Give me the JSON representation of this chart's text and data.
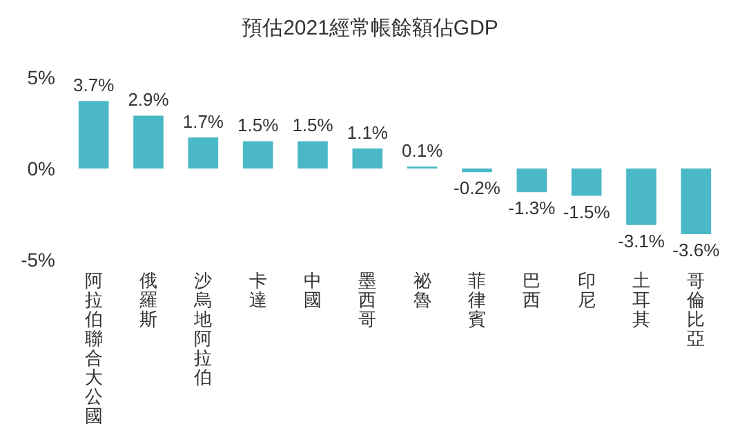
{
  "chart_data": {
    "type": "bar",
    "title": "預估2021經常帳餘額佔GDP",
    "categories": [
      "阿拉伯聯合大公國",
      "俄羅斯",
      "沙烏地阿拉伯",
      "卡達",
      "中國",
      "墨西哥",
      "祕魯",
      "菲律賓",
      "巴西",
      "印尼",
      "土耳其",
      "哥倫比亞"
    ],
    "values": [
      3.7,
      2.9,
      1.7,
      1.5,
      1.5,
      1.1,
      0.1,
      -0.2,
      -1.3,
      -1.5,
      -3.1,
      -3.6
    ],
    "value_labels": [
      "3.7%",
      "2.9%",
      "1.7%",
      "1.5%",
      "1.5%",
      "1.1%",
      "0.1%",
      "-0.2%",
      "-1.3%",
      "-1.5%",
      "-3.1%",
      "-3.6%"
    ],
    "color": "#4bb8c8",
    "ylim": [
      -5,
      5
    ],
    "yticks": [
      {
        "value": -5,
        "label": "-5%"
      },
      {
        "value": 0,
        "label": "0%"
      },
      {
        "value": 5,
        "label": "5%"
      }
    ],
    "grid": false
  }
}
